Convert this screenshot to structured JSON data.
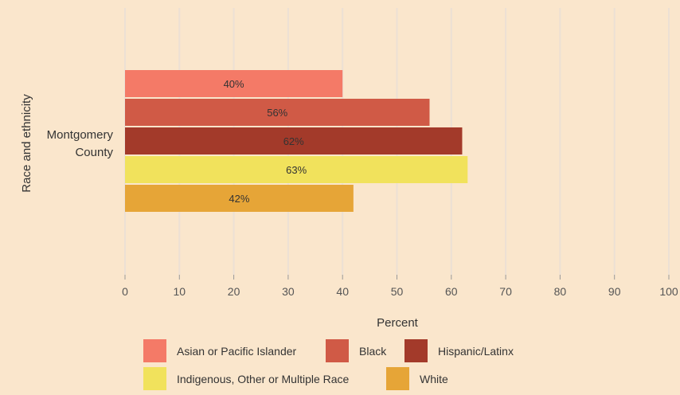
{
  "chart_data": {
    "type": "bar",
    "orientation": "horizontal",
    "categories": [
      "Montgomery County"
    ],
    "category_lines": [
      "Montgomery",
      "County"
    ],
    "series": [
      {
        "name": "Asian or Pacific Islander",
        "values": [
          40
        ],
        "color": "#f47a67"
      },
      {
        "name": "Black",
        "values": [
          56
        ],
        "color": "#d05a46"
      },
      {
        "name": "Hispanic/Latinx",
        "values": [
          62
        ],
        "color": "#a33a2a"
      },
      {
        "name": "Indigenous, Other or Multiple Race",
        "values": [
          63
        ],
        "color": "#f1e25c"
      },
      {
        "name": "White",
        "values": [
          42
        ],
        "color": "#e6a537"
      }
    ],
    "data_labels": [
      "40%",
      "56%",
      "62%",
      "63%",
      "42%"
    ],
    "x_ticks": [
      0,
      10,
      20,
      30,
      40,
      50,
      60,
      70,
      80,
      90,
      100
    ],
    "xlim": [
      0,
      100
    ],
    "xlabel": "Percent",
    "ylabel": "Race and ethnicity",
    "grid": true,
    "legend_position": "bottom"
  },
  "colors": {
    "background": "#fae6cc",
    "gridline": "#ece0d4",
    "axis": "#999999"
  }
}
